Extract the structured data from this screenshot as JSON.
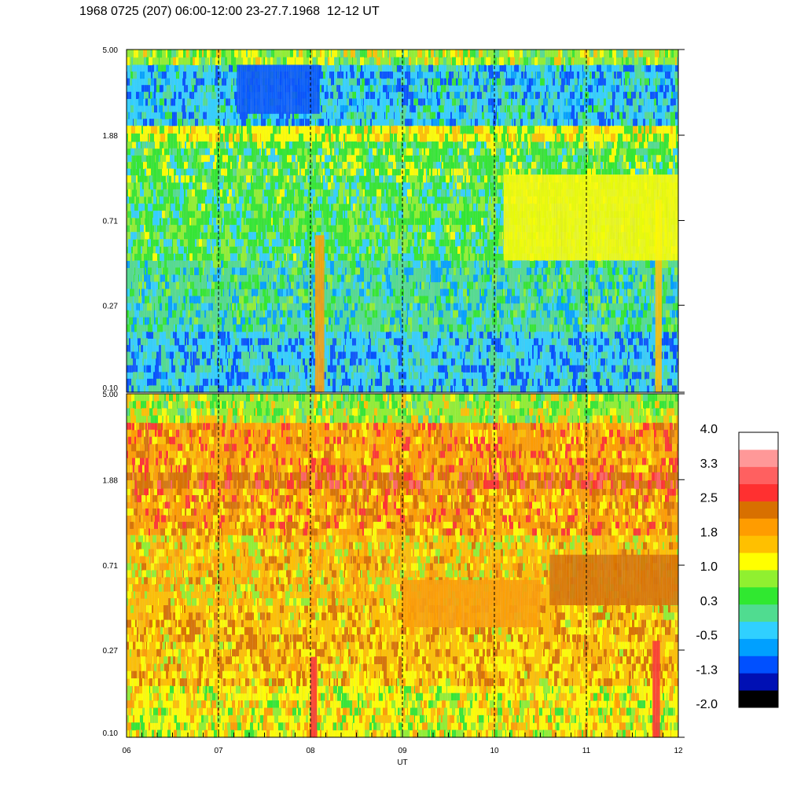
{
  "title": "1968 0725 (207) 06:00-12:00 23-27.7.1968  12-12 UT",
  "chart_data": [
    {
      "type": "heatmap",
      "panel": "upper",
      "x_tick_labels": [
        "06",
        "07",
        "08",
        "09",
        "10",
        "11",
        "12"
      ],
      "xlim": [
        6,
        12
      ],
      "y_tick_labels": [
        "5.00",
        "1.88",
        "0.71",
        "0.27",
        "0.10"
      ],
      "ylim": [
        0.1,
        5.0
      ],
      "y_scale": "log",
      "grid": "dashed vertical lines at each hour",
      "bands": [
        {
          "y_from": 0.1,
          "y_to": 0.2,
          "level": -0.5
        },
        {
          "y_from": 0.2,
          "y_to": 0.45,
          "level": 0.0
        },
        {
          "y_from": 0.45,
          "y_to": 1.1,
          "level": 0.3
        },
        {
          "y_from": 1.1,
          "y_to": 1.75,
          "level": 0.5
        },
        {
          "y_from": 1.75,
          "y_to": 2.1,
          "level": 1.0
        },
        {
          "y_from": 2.1,
          "y_to": 4.2,
          "level": -0.4
        },
        {
          "y_from": 4.2,
          "y_to": 5.0,
          "level": 0.8
        }
      ],
      "features": [
        {
          "x_from": 8.05,
          "x_to": 8.15,
          "y_from": 0.1,
          "y_to": 0.6,
          "level": 1.8
        },
        {
          "x_from": 11.75,
          "x_to": 11.82,
          "y_from": 0.1,
          "y_to": 0.9,
          "level": 1.4
        },
        {
          "x_from": 10.1,
          "x_to": 12.0,
          "y_from": 0.45,
          "y_to": 1.2,
          "level": 1.0
        },
        {
          "x_from": 7.2,
          "x_to": 8.1,
          "y_from": 2.4,
          "y_to": 4.2,
          "level": -1.0
        }
      ]
    },
    {
      "type": "heatmap",
      "panel": "lower",
      "x_tick_labels": [
        "06",
        "07",
        "08",
        "09",
        "10",
        "11",
        "12"
      ],
      "xlim": [
        6,
        12
      ],
      "x_label": "UT",
      "y_tick_labels": [
        "5.00",
        "1.88",
        "0.71",
        "0.27",
        "0.10"
      ],
      "ylim": [
        0.1,
        5.0
      ],
      "y_scale": "log",
      "grid": "dashed vertical lines at each hour",
      "bands": [
        {
          "y_from": 0.1,
          "y_to": 0.18,
          "level": 1.2
        },
        {
          "y_from": 0.18,
          "y_to": 0.45,
          "level": 1.7
        },
        {
          "y_from": 0.45,
          "y_to": 1.0,
          "level": 1.5
        },
        {
          "y_from": 1.0,
          "y_to": 1.7,
          "level": 1.9
        },
        {
          "y_from": 1.7,
          "y_to": 2.05,
          "level": 2.3
        },
        {
          "y_from": 2.05,
          "y_to": 3.6,
          "level": 2.0
        },
        {
          "y_from": 3.6,
          "y_to": 5.0,
          "level": 0.9
        }
      ],
      "features": [
        {
          "x_from": 8.0,
          "x_to": 8.07,
          "y_from": 0.1,
          "y_to": 0.25,
          "level": 2.8
        },
        {
          "x_from": 11.72,
          "x_to": 11.8,
          "y_from": 0.1,
          "y_to": 0.3,
          "level": 2.8
        },
        {
          "x_from": 10.6,
          "x_to": 12.0,
          "y_from": 0.45,
          "y_to": 0.8,
          "level": 2.3
        },
        {
          "x_from": 9.0,
          "x_to": 10.5,
          "y_from": 0.35,
          "y_to": 0.6,
          "level": 2.0
        }
      ]
    }
  ],
  "colorbar": {
    "labels": [
      "4.0",
      "3.3",
      "2.5",
      "1.8",
      "1.0",
      "0.3",
      "-0.5",
      "-1.3",
      "-2.0"
    ],
    "range": [
      -2.0,
      4.0
    ],
    "colors_bottom_to_top": [
      "#000000",
      "#0010b4",
      "#0050ff",
      "#00a0ff",
      "#30d0ff",
      "#50dc90",
      "#30e830",
      "#90f030",
      "#ffff00",
      "#ffc000",
      "#ff9c00",
      "#d87000",
      "#ff3030",
      "#ff6060",
      "#ff9898",
      "#ffffff"
    ]
  }
}
